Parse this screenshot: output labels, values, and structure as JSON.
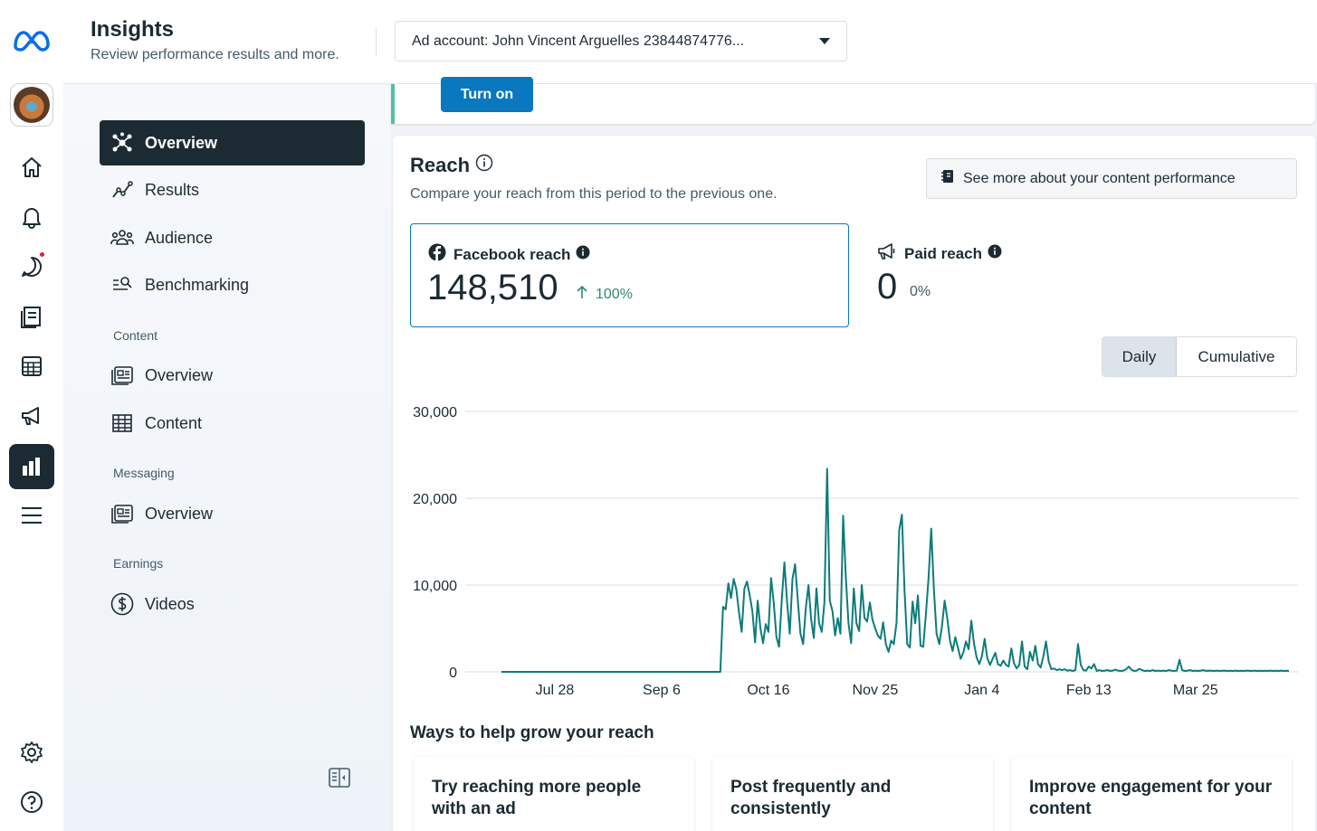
{
  "header": {
    "title": "Insights",
    "subtitle": "Review performance results and more.",
    "ad_account": "Ad account: John Vincent Arguelles 23844874776..."
  },
  "rail": {
    "items": [
      "home",
      "notifications",
      "messages",
      "pages",
      "calendar",
      "ads",
      "insights",
      "menu",
      "settings",
      "help"
    ]
  },
  "sidebar": {
    "items": [
      {
        "label": "Overview"
      },
      {
        "label": "Results"
      },
      {
        "label": "Audience"
      },
      {
        "label": "Benchmarking"
      }
    ],
    "content_section": "Content",
    "content_items": [
      {
        "label": "Overview"
      },
      {
        "label": "Content"
      }
    ],
    "messaging_section": "Messaging",
    "messaging_items": [
      {
        "label": "Overview"
      }
    ],
    "earnings_section": "Earnings",
    "earnings_items": [
      {
        "label": "Videos"
      }
    ]
  },
  "banner": {
    "button_label": "Turn on"
  },
  "reach": {
    "title": "Reach",
    "description": "Compare your reach from this period to the previous one.",
    "more_button": "See more about your content performance",
    "facebook": {
      "label": "Facebook reach",
      "value": "148,510",
      "change": "100%"
    },
    "paid": {
      "label": "Paid reach",
      "value": "0",
      "change": "0%"
    },
    "toggle": {
      "daily": "Daily",
      "cumulative": "Cumulative"
    }
  },
  "chart_data": {
    "type": "line",
    "title": "Reach",
    "series": [
      {
        "name": "Facebook reach",
        "color": "#0e7b7b"
      }
    ],
    "y_ticks": [
      "30,000",
      "20,000",
      "10,000",
      "0"
    ],
    "y_tick_values": [
      30000,
      20000,
      10000,
      0
    ],
    "ylim": [
      0,
      30000
    ],
    "x_ticks": [
      "Jul 28",
      "Sep 6",
      "Oct 16",
      "Nov 25",
      "Jan 4",
      "Feb 13",
      "Mar 25"
    ],
    "x_tick_days": [
      20,
      60,
      100,
      140,
      180,
      220,
      260
    ],
    "x_range_days": [
      0,
      295
    ],
    "points": [
      [
        0,
        0
      ],
      [
        82,
        0
      ],
      [
        83,
        7500
      ],
      [
        84,
        7200
      ],
      [
        85,
        10200
      ],
      [
        86,
        8500
      ],
      [
        87,
        10700
      ],
      [
        88,
        9500
      ],
      [
        89,
        6800
      ],
      [
        90,
        4600
      ],
      [
        91,
        9600
      ],
      [
        92,
        10400
      ],
      [
        93,
        8800
      ],
      [
        94,
        7000
      ],
      [
        95,
        3400
      ],
      [
        96,
        8200
      ],
      [
        97,
        5000
      ],
      [
        98,
        3300
      ],
      [
        99,
        5500
      ],
      [
        100,
        4600
      ],
      [
        101,
        10800
      ],
      [
        102,
        8000
      ],
      [
        103,
        4000
      ],
      [
        104,
        2900
      ],
      [
        105,
        8300
      ],
      [
        106,
        12600
      ],
      [
        107,
        8000
      ],
      [
        108,
        4400
      ],
      [
        109,
        10700
      ],
      [
        110,
        12400
      ],
      [
        111,
        8300
      ],
      [
        112,
        4400
      ],
      [
        113,
        3200
      ],
      [
        114,
        7300
      ],
      [
        115,
        10000
      ],
      [
        116,
        6100
      ],
      [
        117,
        3900
      ],
      [
        118,
        9600
      ],
      [
        119,
        5600
      ],
      [
        120,
        4600
      ],
      [
        121,
        8000
      ],
      [
        122,
        23400
      ],
      [
        123,
        8200
      ],
      [
        124,
        7000
      ],
      [
        125,
        4200
      ],
      [
        126,
        6200
      ],
      [
        127,
        4400
      ],
      [
        128,
        18000
      ],
      [
        129,
        11000
      ],
      [
        130,
        5600
      ],
      [
        131,
        3300
      ],
      [
        132,
        9600
      ],
      [
        133,
        5600
      ],
      [
        134,
        4700
      ],
      [
        135,
        10000
      ],
      [
        136,
        6200
      ],
      [
        137,
        5800
      ],
      [
        138,
        8000
      ],
      [
        139,
        6000
      ],
      [
        140,
        5000
      ],
      [
        141,
        4200
      ],
      [
        142,
        3800
      ],
      [
        143,
        5700
      ],
      [
        144,
        3200
      ],
      [
        145,
        2300
      ],
      [
        146,
        3600
      ],
      [
        147,
        3200
      ],
      [
        148,
        5700
      ],
      [
        149,
        16300
      ],
      [
        150,
        18100
      ],
      [
        151,
        9400
      ],
      [
        152,
        3200
      ],
      [
        153,
        2800
      ],
      [
        154,
        8100
      ],
      [
        155,
        5600
      ],
      [
        156,
        8800
      ],
      [
        157,
        3000
      ],
      [
        158,
        2900
      ],
      [
        159,
        6600
      ],
      [
        160,
        10900
      ],
      [
        161,
        16500
      ],
      [
        162,
        9400
      ],
      [
        163,
        4400
      ],
      [
        164,
        3200
      ],
      [
        165,
        5200
      ],
      [
        166,
        8200
      ],
      [
        167,
        6200
      ],
      [
        168,
        3600
      ],
      [
        169,
        2400
      ],
      [
        170,
        4000
      ],
      [
        171,
        2800
      ],
      [
        172,
        1500
      ],
      [
        173,
        2200
      ],
      [
        174,
        3500
      ],
      [
        175,
        2600
      ],
      [
        176,
        5900
      ],
      [
        177,
        3300
      ],
      [
        178,
        1700
      ],
      [
        179,
        900
      ],
      [
        180,
        1800
      ],
      [
        181,
        3800
      ],
      [
        182,
        1600
      ],
      [
        183,
        800
      ],
      [
        184,
        1500
      ],
      [
        185,
        2200
      ],
      [
        186,
        900
      ],
      [
        187,
        700
      ],
      [
        188,
        1300
      ],
      [
        189,
        800
      ],
      [
        190,
        600
      ],
      [
        191,
        2700
      ],
      [
        192,
        1000
      ],
      [
        193,
        400
      ],
      [
        194,
        800
      ],
      [
        195,
        3500
      ],
      [
        196,
        600
      ],
      [
        197,
        300
      ],
      [
        198,
        2300
      ],
      [
        199,
        1300
      ],
      [
        200,
        3000
      ],
      [
        201,
        900
      ],
      [
        202,
        500
      ],
      [
        203,
        1800
      ],
      [
        204,
        3500
      ],
      [
        205,
        1200
      ],
      [
        206,
        300
      ],
      [
        207,
        400
      ],
      [
        208,
        200
      ],
      [
        209,
        300
      ],
      [
        210,
        200
      ],
      [
        211,
        300
      ],
      [
        212,
        150
      ],
      [
        213,
        200
      ],
      [
        214,
        100
      ],
      [
        215,
        200
      ],
      [
        216,
        3200
      ],
      [
        217,
        800
      ],
      [
        218,
        200
      ],
      [
        219,
        150
      ],
      [
        220,
        600
      ],
      [
        221,
        400
      ],
      [
        222,
        900
      ],
      [
        223,
        100
      ],
      [
        224,
        200
      ],
      [
        225,
        100
      ],
      [
        226,
        150
      ],
      [
        227,
        200
      ],
      [
        228,
        100
      ],
      [
        229,
        150
      ],
      [
        230,
        250
      ],
      [
        231,
        150
      ],
      [
        232,
        100
      ],
      [
        233,
        150
      ],
      [
        234,
        300
      ],
      [
        235,
        600
      ],
      [
        236,
        250
      ],
      [
        237,
        100
      ],
      [
        238,
        150
      ],
      [
        239,
        350
      ],
      [
        240,
        200
      ],
      [
        241,
        100
      ],
      [
        242,
        150
      ],
      [
        243,
        100
      ],
      [
        244,
        200
      ],
      [
        245,
        100
      ],
      [
        246,
        150
      ],
      [
        247,
        100
      ],
      [
        248,
        150
      ],
      [
        249,
        100
      ],
      [
        250,
        200
      ],
      [
        251,
        150
      ],
      [
        252,
        100
      ],
      [
        253,
        150
      ],
      [
        254,
        1400
      ],
      [
        255,
        200
      ],
      [
        256,
        100
      ],
      [
        257,
        150
      ],
      [
        258,
        200
      ],
      [
        259,
        100
      ],
      [
        260,
        150
      ],
      [
        261,
        100
      ],
      [
        262,
        150
      ],
      [
        263,
        200
      ],
      [
        264,
        100
      ],
      [
        265,
        150
      ],
      [
        266,
        120
      ],
      [
        267,
        100
      ],
      [
        268,
        150
      ],
      [
        269,
        100
      ],
      [
        270,
        120
      ],
      [
        271,
        150
      ],
      [
        272,
        100
      ],
      [
        273,
        120
      ],
      [
        274,
        100
      ],
      [
        275,
        150
      ],
      [
        276,
        100
      ],
      [
        277,
        120
      ],
      [
        278,
        100
      ],
      [
        279,
        150
      ],
      [
        280,
        120
      ],
      [
        281,
        100
      ],
      [
        282,
        150
      ],
      [
        283,
        100
      ],
      [
        284,
        120
      ],
      [
        285,
        100
      ],
      [
        286,
        120
      ],
      [
        287,
        100
      ],
      [
        288,
        150
      ],
      [
        289,
        100
      ],
      [
        290,
        120
      ],
      [
        291,
        100
      ],
      [
        292,
        150
      ],
      [
        293,
        100
      ],
      [
        294,
        120
      ],
      [
        295,
        100
      ]
    ]
  },
  "grow": {
    "title": "Ways to help grow your reach",
    "cards": [
      {
        "title": "Try reaching more people with an ad"
      },
      {
        "title": "Post frequently and consistently"
      },
      {
        "title": "Improve engagement for your content"
      }
    ]
  }
}
